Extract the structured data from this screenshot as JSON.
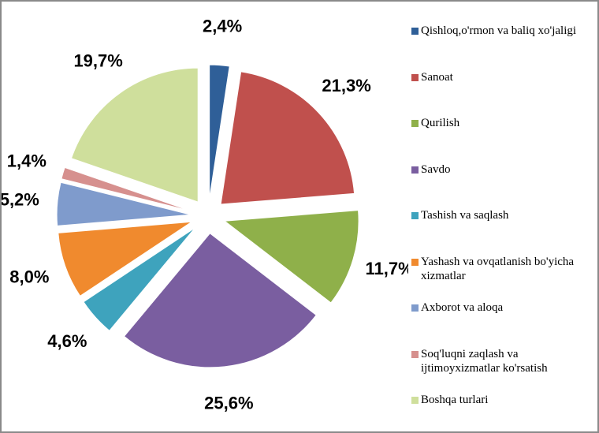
{
  "chart_data": {
    "type": "pie",
    "categories": [
      "Qishloq,o'rmon va baliq xo'jaligi",
      "Sanoat",
      "Qurilish",
      "Savdo",
      "Tashish va saqlash",
      "Yashash va ovqatlanish bo'yicha xizmatlar",
      "Axborot va aloqa",
      "Soq'luqni zaqlash  va ijtimoyxizmatlar ko'rsatish",
      "Boshqa turlari"
    ],
    "values": [
      2.4,
      21.3,
      11.7,
      25.6,
      4.6,
      8.0,
      5.2,
      1.4,
      19.7
    ],
    "value_labels": [
      "2,4%",
      "21,3%",
      "11,7%",
      "25,6%",
      "4,6%",
      "8,0%",
      "5,2%",
      "1,4%",
      "19,7%"
    ],
    "colors": [
      "#2f5f98",
      "#c0504d",
      "#8fb04a",
      "#7a5ea0",
      "#3ea3bd",
      "#f08a2e",
      "#7f9bcc",
      "#d6908e",
      "#cfdf9c"
    ],
    "legend": "right"
  }
}
